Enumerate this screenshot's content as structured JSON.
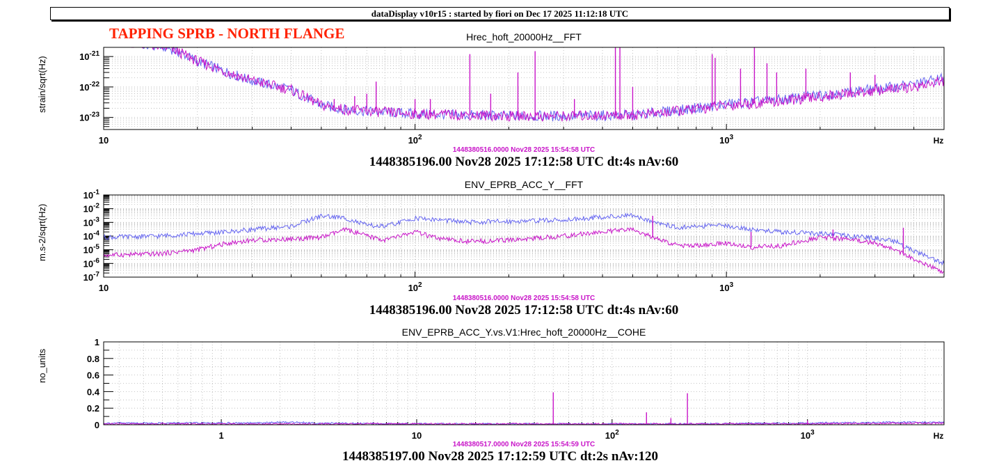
{
  "header": {
    "title": "dataDisplay v10r15 : started by fiori on Dec 17 2025 11:12:18 UTC"
  },
  "banner": {
    "text": "TAPPING SPRB - NORTH FLANGE"
  },
  "colors": {
    "reference": "#6464f0",
    "current": "#c814c8",
    "banner": "#ff2200"
  },
  "chart_data": [
    {
      "type": "line",
      "title": "Hrec_hoft_20000Hz__FFT",
      "ylabel": "strain/sqrt(Hz)",
      "xunit": "Hz",
      "xscale": "log",
      "yscale": "log",
      "xlim": [
        10,
        5000
      ],
      "ylim": [
        4e-24,
        2e-21
      ],
      "xticks": [
        {
          "v": 10,
          "label": "10"
        },
        {
          "v": 100,
          "label": "10^2"
        },
        {
          "v": 1000,
          "label": "10^3"
        }
      ],
      "yticks": [
        {
          "v": 1e-23,
          "label": "10^-23"
        },
        {
          "v": 1e-22,
          "label": "10^-22"
        },
        {
          "v": 1e-21,
          "label": "10^-21"
        }
      ],
      "ref_stamp": "1448380516.0000 Nov28 2025 15:54:58 UTC",
      "stamp": "1448385196.00 Nov28 2025 17:12:58 UTC dt:4s nAv:60",
      "grid": true,
      "series": [
        {
          "color": "#6464f0",
          "x": [
            10,
            16,
            18,
            20,
            25,
            30,
            40,
            50,
            60,
            70,
            100,
            150,
            200,
            300,
            500,
            700,
            1000,
            1500,
            2000,
            3000,
            4000,
            5000
          ],
          "y": [
            4e-21,
            2e-21,
            1.2e-21,
            7e-22,
            3e-22,
            1.6e-22,
            8e-23,
            2.5e-23,
            1.8e-23,
            1.6e-23,
            1.3e-23,
            1.2e-23,
            1.1e-23,
            1.1e-23,
            1.2e-23,
            1.7e-23,
            2.7e-23,
            3.8e-23,
            5.5e-23,
            8.5e-23,
            1.2e-22,
            2e-22
          ]
        },
        {
          "color": "#c814c8",
          "x": [
            10,
            16,
            18,
            20,
            25,
            30,
            40,
            50,
            60,
            70,
            100,
            150,
            200,
            300,
            500,
            700,
            1000,
            1500,
            2000,
            3000,
            4000,
            5000
          ],
          "y": [
            4e-21,
            2e-21,
            1.2e-21,
            7e-22,
            3e-22,
            1.6e-22,
            8e-23,
            2.5e-23,
            1.8e-23,
            1.6e-23,
            1.3e-23,
            1.2e-23,
            1.1e-23,
            1.1e-23,
            1.2e-23,
            1.6e-23,
            2.5e-23,
            3.4e-23,
            4.8e-23,
            7.5e-23,
            1e-22,
            1.6e-22
          ]
        }
      ],
      "peaks": [
        {
          "f": 47,
          "y": 3e-23
        },
        {
          "f": 55,
          "y": 4e-23
        },
        {
          "f": 64,
          "y": 5e-23
        },
        {
          "f": 70,
          "y": 6e-23
        },
        {
          "f": 75,
          "y": 1.5e-22
        },
        {
          "f": 100,
          "y": 4e-23
        },
        {
          "f": 112,
          "y": 4e-23
        },
        {
          "f": 150,
          "y": 1.2e-21
        },
        {
          "f": 175,
          "y": 6e-23
        },
        {
          "f": 214,
          "y": 3e-22
        },
        {
          "f": 243,
          "y": 1.5e-21
        },
        {
          "f": 325,
          "y": 4e-23
        },
        {
          "f": 440,
          "y": 2e-21
        },
        {
          "f": 455,
          "y": 2e-21
        },
        {
          "f": 500,
          "y": 1e-22
        },
        {
          "f": 900,
          "y": 1.2e-21
        },
        {
          "f": 920,
          "y": 9e-22
        },
        {
          "f": 1110,
          "y": 4e-22
        },
        {
          "f": 1230,
          "y": 2e-21
        },
        {
          "f": 1350,
          "y": 6e-22
        },
        {
          "f": 1450,
          "y": 3e-22
        },
        {
          "f": 1800,
          "y": 4e-22
        },
        {
          "f": 2500,
          "y": 3e-22
        },
        {
          "f": 3000,
          "y": 2.5e-22
        }
      ]
    },
    {
      "type": "line",
      "title": "ENV_EPRB_ACC_Y__FFT",
      "ylabel": "m.s-2/sqrt(Hz)",
      "xunit": "",
      "xscale": "log",
      "yscale": "log",
      "xlim": [
        10,
        5000
      ],
      "ylim": [
        1e-07,
        0.1
      ],
      "xticks": [
        {
          "v": 10,
          "label": "10"
        },
        {
          "v": 100,
          "label": "10^2"
        },
        {
          "v": 1000,
          "label": "10^3"
        }
      ],
      "yticks": [
        {
          "v": 1e-07,
          "label": "10^-7"
        },
        {
          "v": 1e-06,
          "label": "10^-6"
        },
        {
          "v": 1e-05,
          "label": "10^-5"
        },
        {
          "v": 0.0001,
          "label": "10^-4"
        },
        {
          "v": 0.001,
          "label": "10^-3"
        },
        {
          "v": 0.01,
          "label": "10^-2"
        },
        {
          "v": 0.1,
          "label": "10^-1"
        }
      ],
      "ref_stamp": "1448380516.0000 Nov28 2025 15:54:58 UTC",
      "stamp": "1448385196.00 Nov28 2025 17:12:58 UTC dt:4s nAv:60",
      "grid": true,
      "series": [
        {
          "color": "#6464f0",
          "x": [
            10,
            15,
            20,
            25,
            30,
            40,
            50,
            60,
            70,
            80,
            100,
            120,
            150,
            200,
            300,
            400,
            500,
            600,
            700,
            800,
            1000,
            1200,
            1500,
            2000,
            2500,
            3000,
            3500,
            4000,
            5000
          ],
          "y": [
            8e-05,
            0.0001,
            0.00015,
            0.0002,
            0.0003,
            0.0005,
            0.003,
            0.002,
            0.0006,
            0.0005,
            0.002,
            0.0015,
            0.001,
            0.0012,
            0.0015,
            0.0025,
            0.003,
            0.001,
            0.0004,
            0.0005,
            0.0006,
            0.0003,
            0.0002,
            0.00015,
            0.0001,
            7e-05,
            4e-05,
            8e-06,
            1e-06
          ]
        },
        {
          "color": "#c814c8",
          "x": [
            10,
            15,
            20,
            25,
            30,
            40,
            50,
            60,
            70,
            80,
            100,
            120,
            150,
            200,
            300,
            400,
            500,
            600,
            700,
            800,
            1000,
            1200,
            1500,
            2000,
            2500,
            3000,
            3500,
            4000,
            5000
          ],
          "y": [
            4e-06,
            5e-06,
            1e-05,
            3e-05,
            5e-05,
            6e-05,
            8e-05,
            0.0003,
            0.0001,
            5e-05,
            0.0002,
            6e-05,
            4e-05,
            5e-05,
            0.0001,
            0.0002,
            0.0003,
            6e-05,
            2e-05,
            2e-05,
            3e-05,
            1.5e-05,
            2e-05,
            8e-05,
            6e-05,
            3e-05,
            1e-05,
            2e-06,
            2e-07
          ]
        }
      ],
      "peaks": [
        {
          "f": 580,
          "y": 0.003
        },
        {
          "f": 1200,
          "y": 0.0002
        },
        {
          "f": 2200,
          "y": 0.0003
        },
        {
          "f": 3700,
          "y": 0.0004
        }
      ]
    },
    {
      "type": "line",
      "title": "ENV_EPRB_ACC_Y.vs.V1:Hrec_hoft_20000Hz__COHE",
      "ylabel": "no_units",
      "xunit": "Hz",
      "xscale": "log",
      "yscale": "linear",
      "xlim": [
        0.25,
        5000
      ],
      "ylim": [
        0,
        1
      ],
      "xticks": [
        {
          "v": 1,
          "label": "1"
        },
        {
          "v": 10,
          "label": "10"
        },
        {
          "v": 100,
          "label": "10^2"
        },
        {
          "v": 1000,
          "label": "10^3"
        }
      ],
      "yticks": [
        {
          "v": 0,
          "label": "0"
        },
        {
          "v": 0.2,
          "label": "0.2"
        },
        {
          "v": 0.4,
          "label": "0.4"
        },
        {
          "v": 0.6,
          "label": "0.6"
        },
        {
          "v": 0.8,
          "label": "0.8"
        },
        {
          "v": 1,
          "label": "1"
        }
      ],
      "ref_stamp": "1448380517.0000 Nov28 2025 15:54:59 UTC",
      "stamp": "1448385197.00 Nov28 2025 17:12:59 UTC dt:2s nAv:120",
      "grid": true,
      "series": [
        {
          "color": "#6464f0",
          "x": [
            0.25,
            1,
            1.5,
            2,
            2.5,
            3,
            10,
            30,
            100,
            300,
            1000,
            3000,
            5000
          ],
          "y": [
            0.02,
            0.02,
            0.02,
            0.03,
            0.03,
            0.02,
            0.01,
            0.01,
            0.01,
            0.01,
            0.02,
            0.03,
            0.03
          ]
        },
        {
          "color": "#c814c8",
          "x": [
            0.25,
            1,
            3,
            10,
            30,
            100,
            300,
            1000,
            3000,
            5000
          ],
          "y": [
            0.01,
            0.01,
            0.01,
            0.01,
            0.01,
            0.01,
            0.01,
            0.01,
            0.02,
            0.02
          ]
        }
      ],
      "peaks": [
        {
          "f": 50,
          "y": 0.39
        },
        {
          "f": 150,
          "y": 0.15
        },
        {
          "f": 200,
          "y": 0.08
        },
        {
          "f": 243,
          "y": 0.38
        },
        {
          "f": 1000,
          "y": 0.05
        }
      ]
    }
  ]
}
